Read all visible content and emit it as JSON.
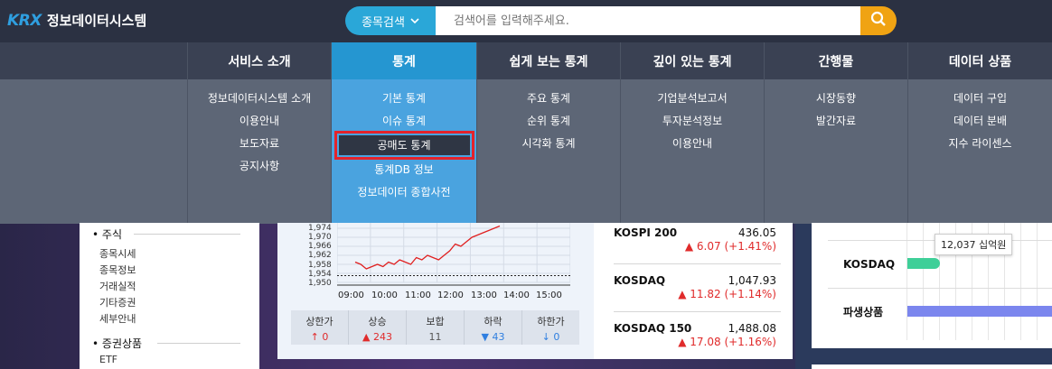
{
  "header": {
    "logo_mark": "KRX",
    "logo_text": "정보데이터시스템",
    "search_category": "종목검색",
    "search_placeholder": "검색어를 입력해주세요."
  },
  "nav": [
    {
      "label": "서비스 소개",
      "items": [
        "정보데이터시스템 소개",
        "이용안내",
        "보도자료",
        "공지사항"
      ]
    },
    {
      "label": "통계",
      "items": [
        "기본 통계",
        "이슈 통계",
        "공매도 통계",
        "통계DB 정보",
        "정보데이터 종합사전"
      ],
      "active": true,
      "highlighted": "공매도 통계"
    },
    {
      "label": "쉽게 보는 통계",
      "items": [
        "주요 통계",
        "순위 통계",
        "시각화 통계"
      ]
    },
    {
      "label": "깊이 있는 통계",
      "items": [
        "기업분석보고서",
        "투자분석정보",
        "이용안내"
      ]
    },
    {
      "label": "간행물",
      "items": [
        "시장동향",
        "발간자료"
      ]
    },
    {
      "label": "데이터 상품",
      "items": [
        "데이터 구입",
        "데이터 분배",
        "지수 라이센스"
      ]
    }
  ],
  "left_panel": {
    "sections": [
      {
        "title": "주식",
        "items": [
          "종목시세",
          "종목정보",
          "거래실적",
          "기타증권",
          "세부안내"
        ]
      },
      {
        "title": "증권상품",
        "items": [
          "ETF"
        ]
      }
    ]
  },
  "chart_data": {
    "type": "line",
    "title": "",
    "xlabel": "",
    "ylabel": "",
    "x_ticks": [
      "09:00",
      "10:00",
      "11:00",
      "12:00",
      "13:00",
      "14:00",
      "15:00"
    ],
    "y_ticks": [
      "1,974",
      "1,970",
      "1,966",
      "1,962",
      "1,958",
      "1,954",
      "1,950"
    ],
    "ylim": [
      1950,
      1974
    ],
    "series": [
      {
        "values": [
          1959,
          1958,
          1956,
          1957,
          1958,
          1957,
          1959,
          1958,
          1960,
          1959,
          1958,
          1961,
          1960,
          1962,
          1961,
          1960,
          1962,
          1964,
          1967,
          1966,
          1968,
          1970,
          1971,
          1972,
          1973,
          1974,
          1975
        ]
      }
    ],
    "reference_line": 1953,
    "color": "#e02020"
  },
  "stats": [
    {
      "label": "상한가",
      "value": "0",
      "dir": "upper"
    },
    {
      "label": "상승",
      "value": "243",
      "dir": "up"
    },
    {
      "label": "보합",
      "value": "11",
      "dir": "flat"
    },
    {
      "label": "하락",
      "value": "43",
      "dir": "down"
    },
    {
      "label": "하한가",
      "value": "0",
      "dir": "lower"
    }
  ],
  "indices": [
    {
      "name": "KOSPI 200",
      "value": "436.05",
      "change": "6.07 (+1.41%)"
    },
    {
      "name": "KOSDAQ",
      "value": "1,047.93",
      "change": "11.82 (+1.14%)"
    },
    {
      "name": "KOSDAQ 150",
      "value": "1,488.08",
      "change": "17.08 (+1.16%)"
    }
  ],
  "right_panel": {
    "tooltip": "12,037 십억원",
    "rows": [
      "KOSDAQ",
      "파생상품"
    ]
  },
  "colors": {
    "accent_blue": "#2aa7d8",
    "search_button": "#f0a313",
    "highlight_border": "#e4232b",
    "up": "#e02b2b",
    "down": "#2f7fe0"
  }
}
